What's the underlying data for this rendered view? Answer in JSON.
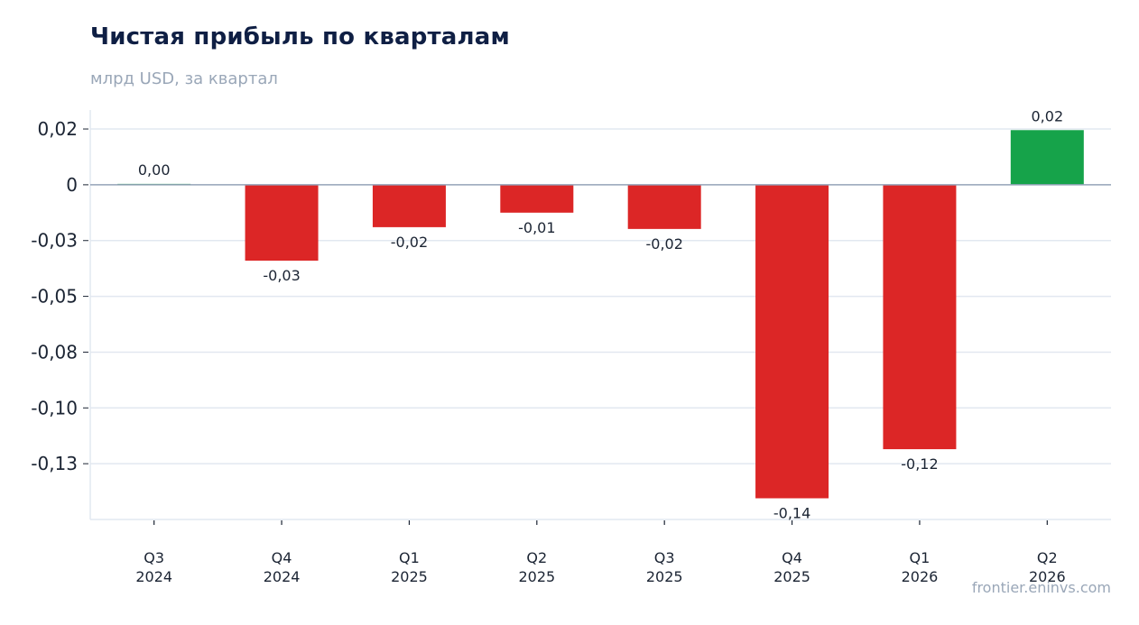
{
  "title": "Чистая прибыль по кварталам",
  "subtitle": "млрд USD, за квартал",
  "source": "frontier.eninvs.com",
  "colors": {
    "positive": "#16a34a",
    "negative": "#dc2626",
    "grid": "#e2e8f0",
    "zero_line": "#94a3b8",
    "title": "#0f1f44",
    "subtitle": "#9aa7b8"
  },
  "chart_data": {
    "type": "bar",
    "title": "Чистая прибыль по кварталам",
    "subtitle": "млрд USD, за квартал",
    "xlabel": "",
    "ylabel": "",
    "categories": [
      [
        "Q3",
        "2024"
      ],
      [
        "Q4",
        "2024"
      ],
      [
        "Q1",
        "2025"
      ],
      [
        "Q2",
        "2025"
      ],
      [
        "Q3",
        "2025"
      ],
      [
        "Q4",
        "2025"
      ],
      [
        "Q1",
        "2026"
      ],
      [
        "Q2",
        "2026"
      ]
    ],
    "values": [
      0.0004,
      -0.034,
      -0.019,
      -0.0125,
      -0.0198,
      -0.1405,
      -0.1185,
      0.0245
    ],
    "data_labels": [
      "0,00",
      "-0,03",
      "-0,02",
      "-0,01",
      "-0,02",
      "-0,14",
      "-0,12",
      "0,02"
    ],
    "yticks": [
      0.025,
      0,
      -0.025,
      -0.05,
      -0.075,
      -0.1,
      -0.125
    ],
    "ytick_labels": [
      "0,02",
      "0",
      "-0,03",
      "-0,05",
      "-0,08",
      "-0,10",
      "-0,13"
    ],
    "ylim": [
      -0.15,
      0.0335
    ],
    "grid": true
  }
}
